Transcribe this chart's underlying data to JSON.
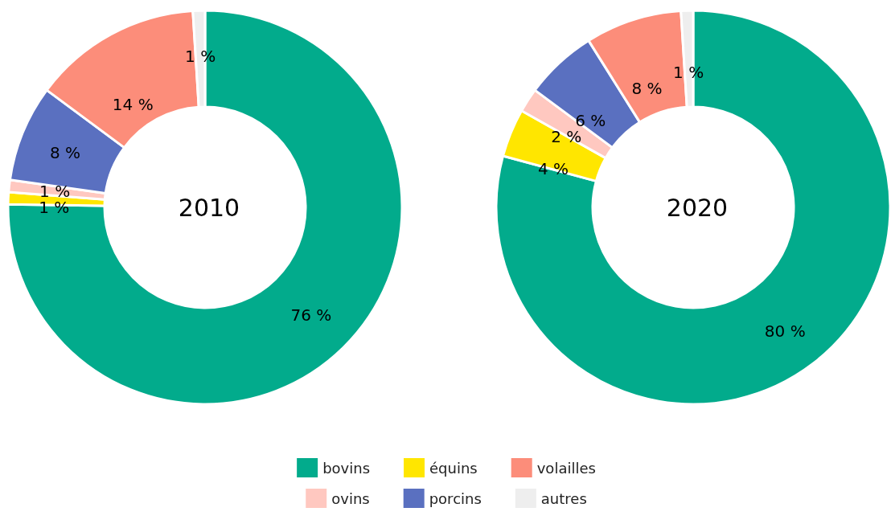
{
  "chart_data": {
    "type": "donut",
    "categories": [
      "bovins",
      "équins",
      "ovins",
      "porcins",
      "volailles",
      "autres"
    ],
    "colors": [
      "#02ab8c",
      "#ffe600",
      "#ffc8c0",
      "#5a70c0",
      "#fc8d7a",
      "#eeeeee"
    ],
    "legend": "bottom",
    "series": [
      {
        "name": "2010",
        "values": [
          76,
          1,
          1,
          8,
          14,
          1
        ],
        "value_labels": [
          "76 %",
          "1 %",
          "1 %",
          "8 %",
          "14 %",
          "1 %"
        ]
      },
      {
        "name": "2020",
        "values": [
          80,
          4,
          2,
          6,
          8,
          1
        ],
        "value_labels": [
          "80 %",
          "4 %",
          "2 %",
          "6 %",
          "8 %",
          "1 %"
        ]
      }
    ]
  }
}
